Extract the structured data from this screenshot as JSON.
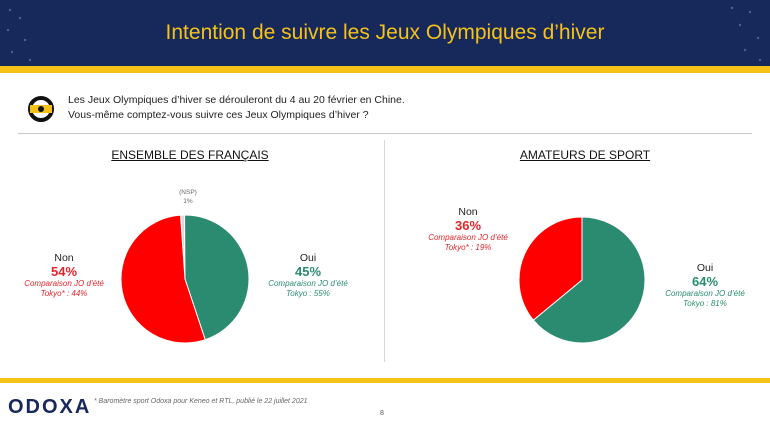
{
  "header": {
    "title": "Intention de suivre les Jeux Olympiques d’hiver"
  },
  "question": {
    "line1": "Les Jeux Olympiques d’hiver se dérouleront du 4 au 20 février en Chine.",
    "line2": "Vous-même comptez-vous suivre ces Jeux Olympiques d’hiver ?",
    "icon": "odoxa-question-icon"
  },
  "colors": {
    "navy": "#17295b",
    "gold": "#f5c218",
    "red": "#ff0000",
    "green": "#2a8b70",
    "gray": "#d9d9d9"
  },
  "chart_data": [
    {
      "type": "pie",
      "title": "ENSEMBLE DES FRANÇAIS",
      "slices": [
        {
          "label": "Oui",
          "value": 45,
          "display": "45%",
          "comparison": [
            "Comparaison JO d’été",
            "Tokyo : 55%"
          ],
          "color": "#2a8b70"
        },
        {
          "label": "Non",
          "value": 54,
          "display": "54%",
          "comparison": [
            "Comparaison JO d’été",
            "Tokyo* : 44%"
          ],
          "color": "#ff0000"
        },
        {
          "label": "(NSP)",
          "value": 1,
          "display": "1%",
          "color": "#d9d9d9"
        }
      ]
    },
    {
      "type": "pie",
      "title": "AMATEURS DE SPORT",
      "slices": [
        {
          "label": "Oui",
          "value": 64,
          "display": "64%",
          "comparison": [
            "Comparaison JO d’été",
            "Tokyo : 81%"
          ],
          "color": "#2a8b70"
        },
        {
          "label": "Non",
          "value": 36,
          "display": "36%",
          "comparison": [
            "Comparaison JO d’été",
            "Tokyo* : 19%"
          ],
          "color": "#ff0000"
        }
      ]
    }
  ],
  "footer": {
    "logo": "ODOXA",
    "note": "* Baromètre sport Odoxa pour Keneo et RTL, publié le 22 juillet 2021",
    "page": "8"
  }
}
